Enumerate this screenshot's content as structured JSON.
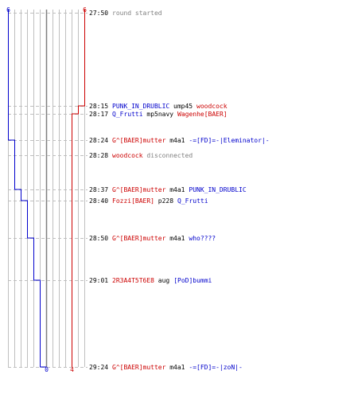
{
  "colors": {
    "team_a": "#0000cc",
    "team_b": "#cc0000",
    "time": "#000000",
    "system": "#808080",
    "weapon": "#000000",
    "grid": "#bfbfbf",
    "dash": "#bfbfbf",
    "center": "#808080"
  },
  "start_counts": {
    "team_a": "6",
    "team_b": "6"
  },
  "end_counts": {
    "team_a": "0",
    "team_b": "4"
  },
  "events": [
    {
      "time": "27:50",
      "parts": [
        {
          "text": "round started",
          "role": "system"
        }
      ]
    },
    {
      "time": "28:15",
      "parts": [
        {
          "text": "PUNK_IN_DRUBLIC",
          "role": "team_a"
        },
        {
          "text": "ump45",
          "role": "weapon"
        },
        {
          "text": "woodcock",
          "role": "team_b"
        }
      ]
    },
    {
      "time": "28:17",
      "parts": [
        {
          "text": "Q_Frutti",
          "role": "team_a"
        },
        {
          "text": "mp5navy",
          "role": "weapon"
        },
        {
          "text": "Wagenhe[BAER]",
          "role": "team_b"
        }
      ]
    },
    {
      "time": "28:24",
      "parts": [
        {
          "text": "G^[BAER]mutter",
          "role": "team_b"
        },
        {
          "text": "m4a1",
          "role": "weapon"
        },
        {
          "text": "-=[FD]=-|Eleminator|-",
          "role": "team_a"
        }
      ]
    },
    {
      "time": "28:28",
      "parts": [
        {
          "text": "woodcock",
          "role": "team_b"
        },
        {
          "text": "disconnected",
          "role": "system"
        }
      ]
    },
    {
      "time": "28:37",
      "parts": [
        {
          "text": "G^[BAER]mutter",
          "role": "team_b"
        },
        {
          "text": "m4a1",
          "role": "weapon"
        },
        {
          "text": "PUNK_IN_DRUBLIC",
          "role": "team_a"
        }
      ]
    },
    {
      "time": "28:40",
      "parts": [
        {
          "text": "Fozzi[BAER]",
          "role": "team_b"
        },
        {
          "text": "p228",
          "role": "weapon"
        },
        {
          "text": "Q_Frutti",
          "role": "team_a"
        }
      ]
    },
    {
      "time": "28:50",
      "parts": [
        {
          "text": "G^[BAER]mutter",
          "role": "team_b"
        },
        {
          "text": "m4a1",
          "role": "weapon"
        },
        {
          "text": "who????",
          "role": "team_a"
        }
      ]
    },
    {
      "time": "29:01",
      "parts": [
        {
          "text": "2R3A4T5T6E8",
          "role": "team_b"
        },
        {
          "text": "aug",
          "role": "weapon"
        },
        {
          "text": "[PoD]bummi",
          "role": "team_a"
        }
      ]
    },
    {
      "time": "29:24",
      "parts": [
        {
          "text": "G^[BAER]mutter",
          "role": "team_b"
        },
        {
          "text": "m4a1",
          "role": "weapon"
        },
        {
          "text": "-=[FD]=-|zoN|-",
          "role": "team_a"
        }
      ]
    }
  ]
}
